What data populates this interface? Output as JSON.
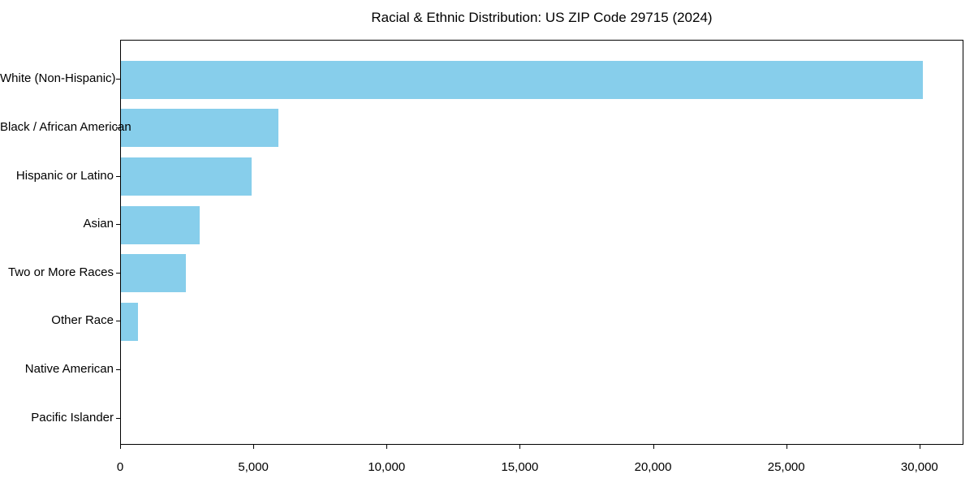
{
  "chart_data": {
    "type": "bar",
    "orientation": "horizontal",
    "title": "Racial & Ethnic Distribution: US ZIP Code 29715 (2024)",
    "categories": [
      "White (Non-Hispanic)",
      "Black / African American",
      "Hispanic or Latino",
      "Asian",
      "Two or More Races",
      "Other Race",
      "Native American",
      "Pacific Islander"
    ],
    "values": [
      30100,
      5900,
      4900,
      2950,
      2450,
      650,
      0,
      0
    ],
    "xlabel": "",
    "ylabel": "",
    "x_ticks": [
      0,
      5000,
      10000,
      15000,
      20000,
      25000,
      30000
    ],
    "x_tick_labels": [
      "0",
      "5,000",
      "10,000",
      "15,000",
      "20,000",
      "25,000",
      "30,000"
    ],
    "xlim": [
      0,
      31650
    ],
    "grid": false,
    "legend": null,
    "bar_color": "#87CEEB",
    "spine_color": "#000000",
    "text_color": "#000000",
    "background_color": "#FFFFFF"
  }
}
